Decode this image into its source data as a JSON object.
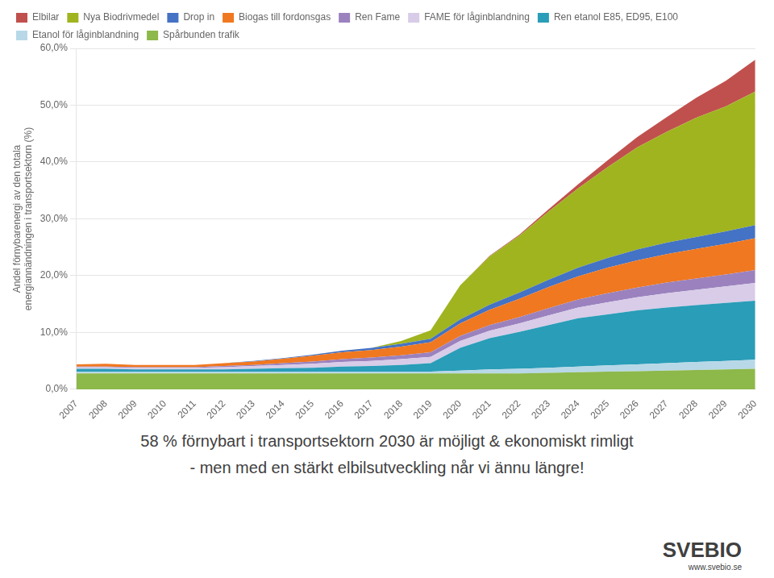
{
  "chart_data": {
    "type": "area",
    "stacked": true,
    "x": [
      2007,
      2008,
      2009,
      2010,
      2011,
      2012,
      2013,
      2014,
      2015,
      2016,
      2017,
      2018,
      2019,
      2020,
      2021,
      2022,
      2023,
      2024,
      2025,
      2026,
      2027,
      2028,
      2029,
      2030
    ],
    "xlim": [
      2007,
      2030
    ],
    "xticks": [
      2007,
      2008,
      2009,
      2010,
      2011,
      2012,
      2013,
      2014,
      2015,
      2016,
      2017,
      2018,
      2019,
      2020,
      2021,
      2022,
      2023,
      2024,
      2025,
      2026,
      2027,
      2028,
      2029,
      2030
    ],
    "ylim": [
      0,
      60
    ],
    "yticks": [
      {
        "value": 0,
        "label": "0,0%"
      },
      {
        "value": 10,
        "label": "10,0%"
      },
      {
        "value": 20,
        "label": "20,0%"
      },
      {
        "value": 30,
        "label": "30,0%"
      },
      {
        "value": 40,
        "label": "40,0%"
      },
      {
        "value": 50,
        "label": "50,0%"
      },
      {
        "value": 60,
        "label": "60,0%"
      }
    ],
    "ylabel": "Andel förnybarenergi av den totala\nenergiannändningen i transportsektorn (%)",
    "grid": "y",
    "legend": "upper left",
    "series": [
      {
        "name": "Spårbunden trafik",
        "color": "#8db84a",
        "values": [
          2.8,
          2.8,
          2.8,
          2.8,
          2.8,
          2.8,
          2.8,
          2.8,
          2.8,
          2.8,
          2.8,
          2.8,
          2.8,
          2.8,
          2.8,
          2.8,
          2.9,
          3.0,
          3.1,
          3.2,
          3.3,
          3.4,
          3.5,
          3.6
        ]
      },
      {
        "name": "Etanol för låginblandning",
        "color": "#b8d8e8",
        "values": [
          0.3,
          0.3,
          0.3,
          0.3,
          0.3,
          0.3,
          0.3,
          0.3,
          0.3,
          0.3,
          0.3,
          0.3,
          0.3,
          0.5,
          0.7,
          0.8,
          0.9,
          1.0,
          1.1,
          1.2,
          1.3,
          1.4,
          1.5,
          1.6
        ]
      },
      {
        "name": "Ren etanol E85, ED95, E100",
        "color": "#2a9db8",
        "values": [
          0.5,
          0.5,
          0.4,
          0.4,
          0.4,
          0.4,
          0.5,
          0.6,
          0.7,
          0.9,
          1.0,
          1.2,
          1.5,
          4.0,
          5.5,
          6.5,
          7.5,
          8.5,
          9.0,
          9.5,
          9.8,
          10.0,
          10.2,
          10.4
        ]
      },
      {
        "name": "FAME för låginblandning",
        "color": "#d8cce8",
        "values": [
          0.3,
          0.3,
          0.3,
          0.3,
          0.3,
          0.4,
          0.5,
          0.6,
          0.7,
          0.8,
          0.9,
          1.0,
          1.1,
          1.2,
          1.3,
          1.5,
          1.7,
          1.9,
          2.1,
          2.3,
          2.5,
          2.7,
          2.9,
          3.1
        ]
      },
      {
        "name": "Ren Fame",
        "color": "#9b82be",
        "values": [
          0.1,
          0.1,
          0.1,
          0.1,
          0.1,
          0.2,
          0.2,
          0.3,
          0.4,
          0.5,
          0.6,
          0.7,
          0.8,
          0.9,
          1.0,
          1.1,
          1.3,
          1.4,
          1.6,
          1.7,
          1.9,
          2.0,
          2.1,
          2.3
        ]
      },
      {
        "name": "Biogas till fordonsgas",
        "color": "#f07820",
        "values": [
          0.4,
          0.5,
          0.4,
          0.4,
          0.4,
          0.5,
          0.6,
          0.8,
          1.0,
          1.2,
          1.3,
          1.5,
          1.8,
          2.2,
          2.7,
          3.2,
          3.7,
          4.1,
          4.5,
          4.8,
          5.0,
          5.2,
          5.4,
          5.6
        ]
      },
      {
        "name": "Drop in",
        "color": "#4472c4",
        "values": [
          0.0,
          0.0,
          0.0,
          0.0,
          0.0,
          0.0,
          0.1,
          0.1,
          0.2,
          0.3,
          0.4,
          0.5,
          0.6,
          0.7,
          0.9,
          1.1,
          1.3,
          1.5,
          1.7,
          1.9,
          2.0,
          2.1,
          2.2,
          2.3
        ]
      },
      {
        "name": "Nya Biodrivmedel",
        "color": "#a0b420",
        "values": [
          0.0,
          0.0,
          0.0,
          0.0,
          0.0,
          0.0,
          0.0,
          0.0,
          0.0,
          0.0,
          0.0,
          0.5,
          1.5,
          6.0,
          8.5,
          10.0,
          12.0,
          14.0,
          16.0,
          18.0,
          19.5,
          21.0,
          22.0,
          23.5
        ]
      },
      {
        "name": "Elbilar",
        "color": "#c0504d",
        "values": [
          0.0,
          0.0,
          0.0,
          0.0,
          0.0,
          0.0,
          0.0,
          0.0,
          0.0,
          0.0,
          0.0,
          0.0,
          0.0,
          0.0,
          0.1,
          0.2,
          0.4,
          0.7,
          1.2,
          1.8,
          2.6,
          3.5,
          4.5,
          5.6
        ]
      }
    ],
    "annotations": [
      "58 % förnybart i transportsektorn 2030 är möjligt & ekonomiskt rimligt",
      "- men med en stärkt elbilsutveckling når vi ännu längre!",
      "SV",
      "EBIO",
      "www.svebio.se"
    ]
  }
}
